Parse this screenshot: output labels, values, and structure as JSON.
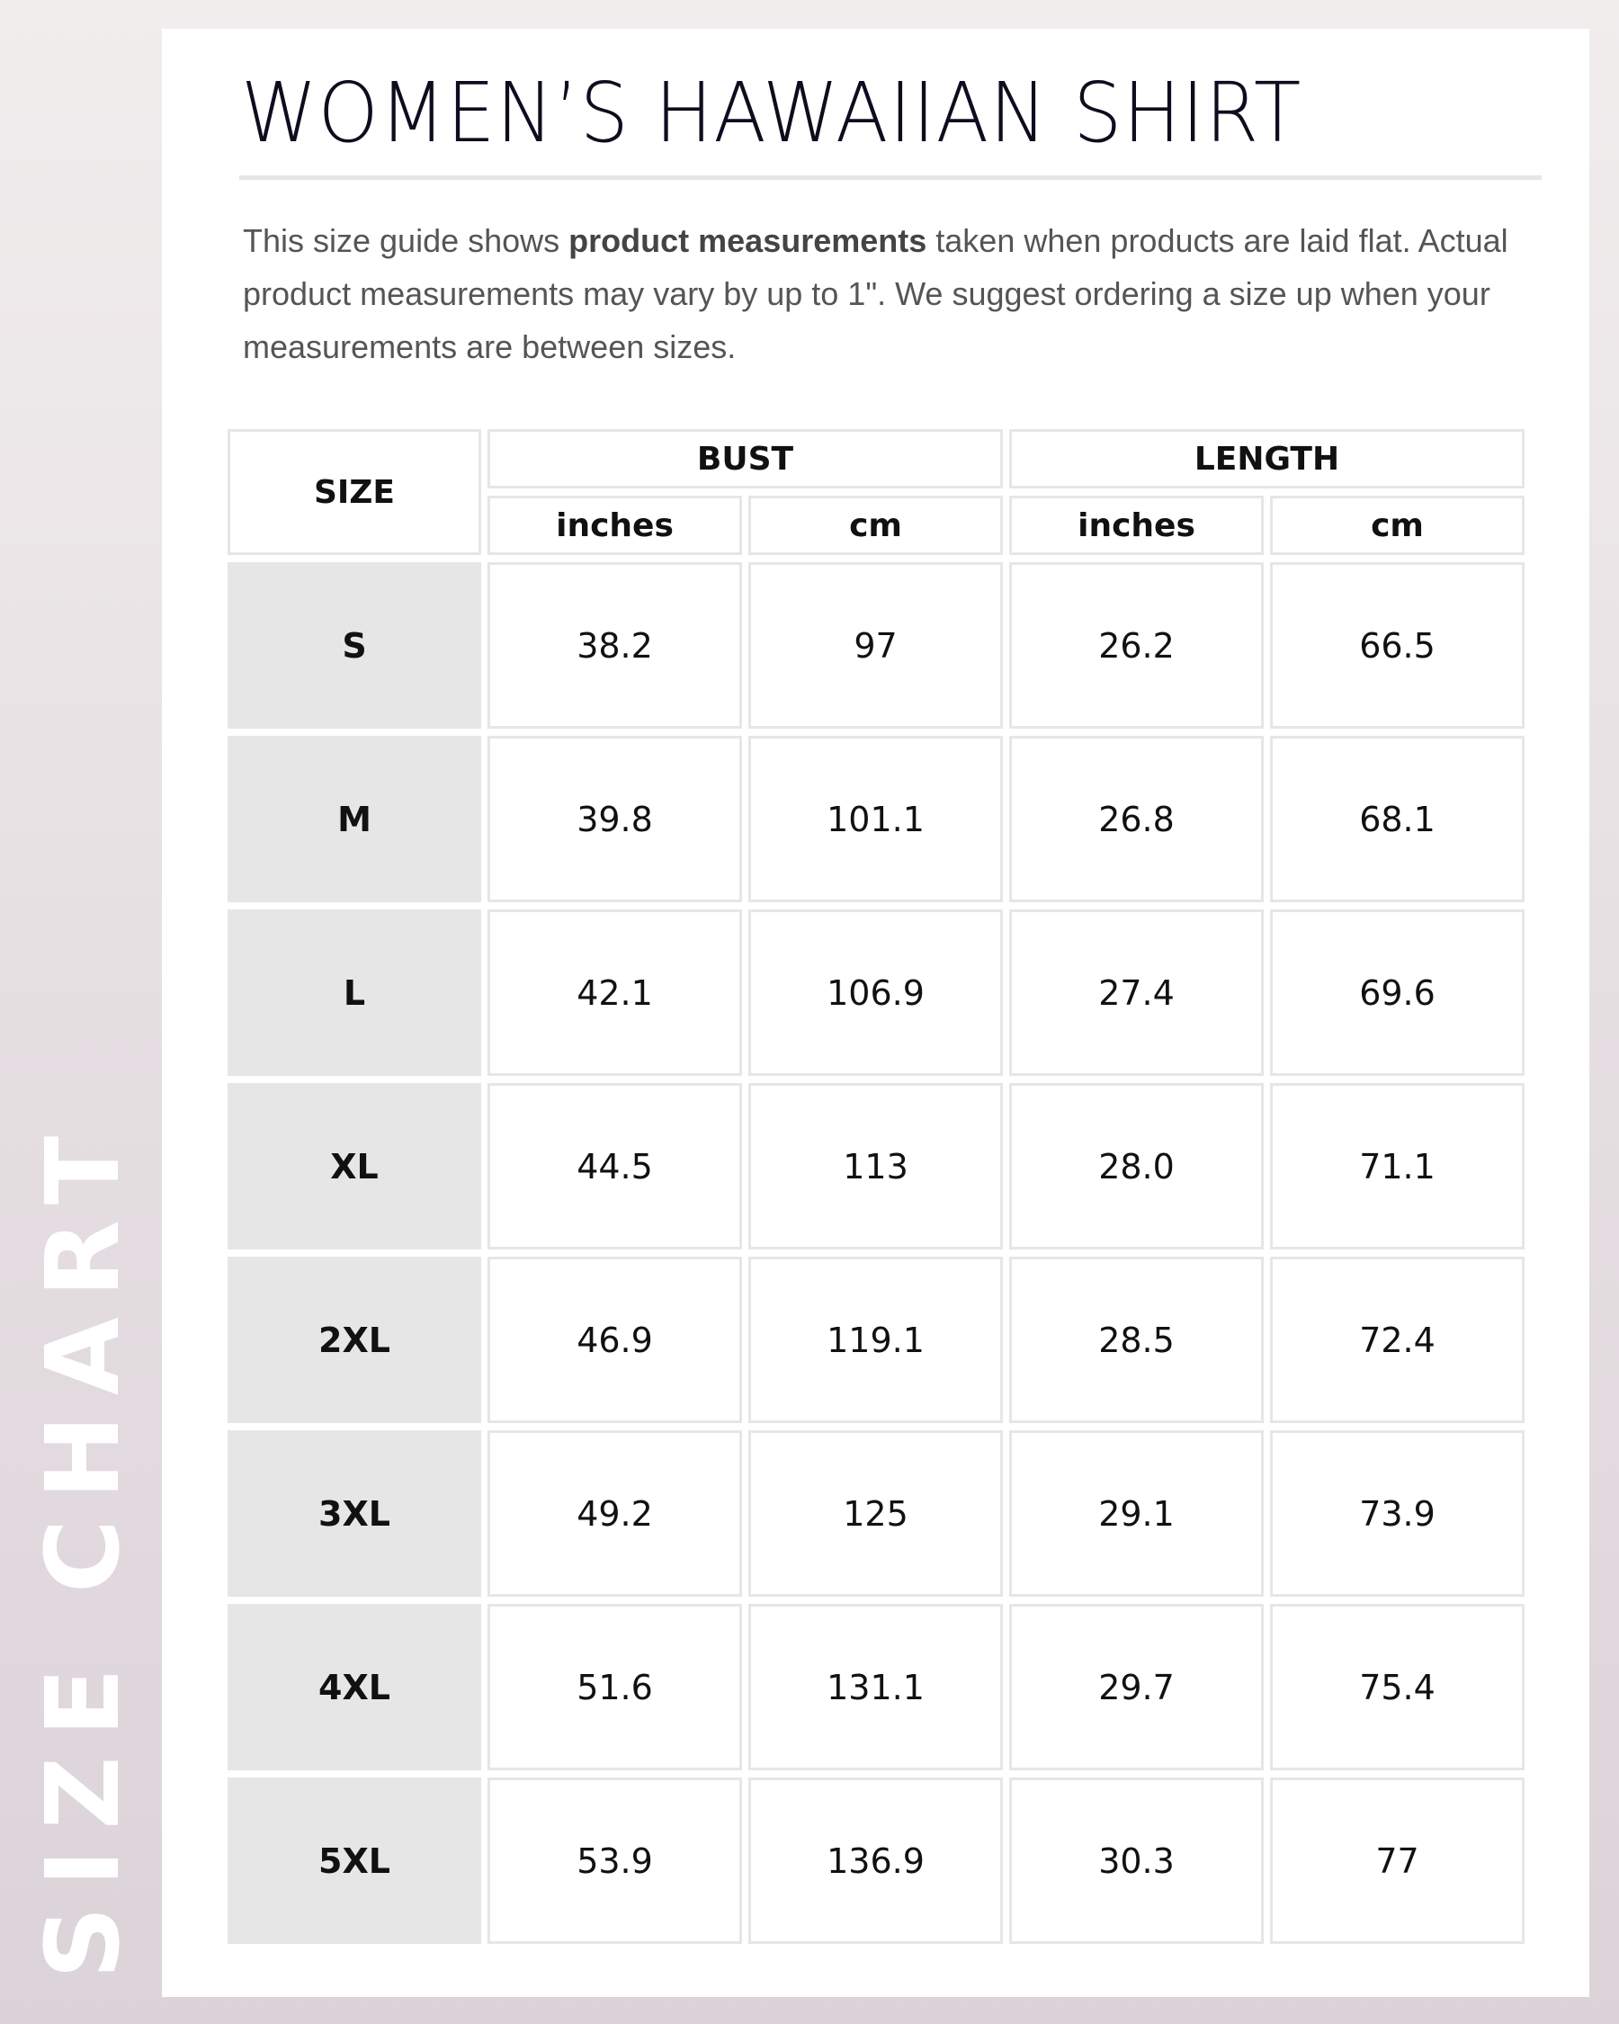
{
  "side_label": "SIZE CHART",
  "title": "WOMEN’S HAWAIIAN SHIRT",
  "description": {
    "part1": "This size guide shows ",
    "bold": "product measurements",
    "part2": " taken when products are laid flat. Actual product measurements may vary by up to 1\". We suggest ordering a size up when your measurements are between sizes."
  },
  "table": {
    "size_header": "SIZE",
    "groups": [
      "BUST",
      "LENGTH"
    ],
    "units": [
      "inches",
      "cm",
      "inches",
      "cm"
    ],
    "rows": [
      {
        "size": "S",
        "values": [
          "38.2",
          "97",
          "26.2",
          "66.5"
        ]
      },
      {
        "size": "M",
        "values": [
          "39.8",
          "101.1",
          "26.8",
          "68.1"
        ]
      },
      {
        "size": "L",
        "values": [
          "42.1",
          "106.9",
          "27.4",
          "69.6"
        ]
      },
      {
        "size": "XL",
        "values": [
          "44.5",
          "113",
          "28.0",
          "71.1"
        ]
      },
      {
        "size": "2XL",
        "values": [
          "46.9",
          "119.1",
          "28.5",
          "72.4"
        ]
      },
      {
        "size": "3XL",
        "values": [
          "49.2",
          "125",
          "29.1",
          "73.9"
        ]
      },
      {
        "size": "4XL",
        "values": [
          "51.6",
          "131.1",
          "29.7",
          "75.4"
        ]
      },
      {
        "size": "5XL",
        "values": [
          "53.9",
          "136.9",
          "30.3",
          "77"
        ]
      }
    ]
  }
}
